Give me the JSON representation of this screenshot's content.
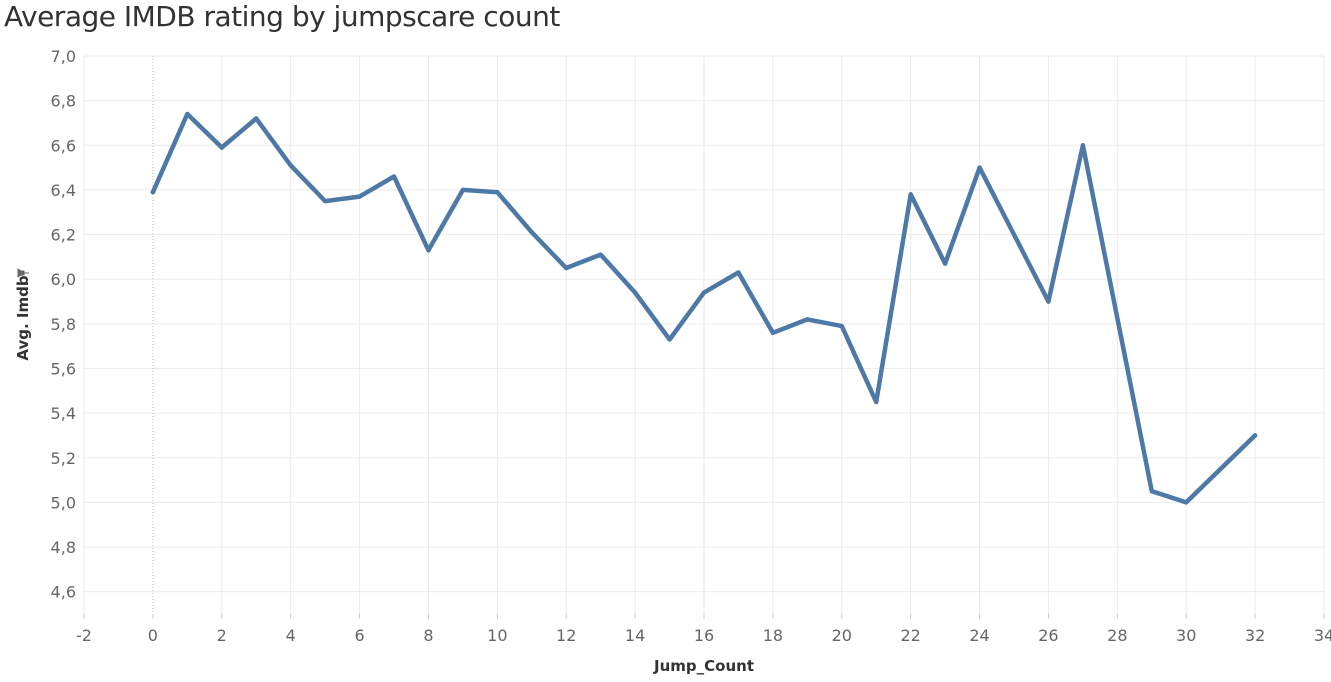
{
  "chart_data": {
    "type": "line",
    "title": "Average IMDB rating by jumpscare count",
    "xlabel": "Jump_Count",
    "ylabel": "Avg. Imdb",
    "xlim": [
      -2,
      34
    ],
    "ylim": [
      4.5,
      7.0
    ],
    "x_ticks": [
      -2,
      0,
      2,
      4,
      6,
      8,
      10,
      12,
      14,
      16,
      18,
      20,
      22,
      24,
      26,
      28,
      30,
      32,
      34
    ],
    "y_ticks": [
      4.6,
      4.8,
      5.0,
      5.2,
      5.4,
      5.6,
      5.8,
      6.0,
      6.2,
      6.4,
      6.6,
      6.8,
      7.0
    ],
    "decimal_separator": ",",
    "grid": true,
    "colors": {
      "line": "#4e79a7",
      "grid": "#ebebeb",
      "zero_line": "#bdbdbd"
    },
    "series": [
      {
        "x": [
          0,
          1,
          2,
          3,
          4,
          5,
          6,
          7,
          8,
          9,
          10,
          11,
          12,
          13,
          14,
          15,
          16,
          17,
          18,
          19,
          20,
          21,
          22,
          23,
          24,
          26,
          27,
          29,
          30,
          32
        ],
        "values": [
          6.39,
          6.74,
          6.59,
          6.72,
          6.51,
          6.35,
          6.37,
          6.46,
          6.13,
          6.4,
          6.39,
          6.21,
          6.05,
          6.11,
          5.94,
          5.73,
          5.94,
          6.03,
          5.76,
          5.82,
          5.79,
          5.45,
          6.38,
          6.07,
          6.5,
          5.9,
          6.6,
          5.05,
          5.0,
          5.3
        ]
      }
    ]
  }
}
